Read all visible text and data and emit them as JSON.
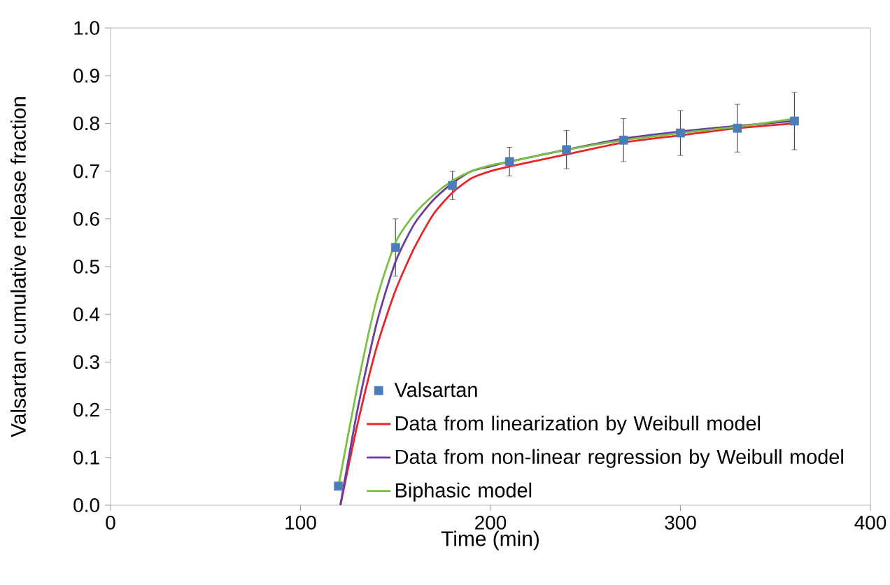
{
  "chart_data": {
    "type": "scatter",
    "xlabel": "Time (min)",
    "ylabel": "Valsartan cumulative release fraction",
    "xlim": [
      0,
      400
    ],
    "xticks": [
      0,
      100,
      200,
      300,
      400
    ],
    "ylim": [
      0,
      1
    ],
    "yticks": [
      {
        "value": 0,
        "label": "0.0"
      },
      0.1,
      0.2,
      0.3,
      0.4,
      0.5,
      0.6,
      0.7,
      0.8,
      0.9,
      {
        "value": 1,
        "label": "1.0"
      }
    ],
    "legend": "bottom",
    "grid": false,
    "series": [
      {
        "name": "Valsartan",
        "marker": "square",
        "color": "#4a7ebb",
        "x": [
          120,
          150,
          180,
          210,
          240,
          270,
          300,
          330,
          360
        ],
        "values": [
          0.04,
          0.54,
          0.67,
          0.72,
          0.745,
          0.765,
          0.78,
          0.79,
          0.805
        ],
        "errors": [
          null,
          0.06,
          0.03,
          0.03,
          0.04,
          0.045,
          0.047,
          0.05,
          0.06
        ]
      },
      {
        "name": "Data from linearization by Weibull model",
        "type": "line",
        "marker": "none",
        "color": "#e8262a",
        "x": [
          121,
          130,
          140,
          150,
          160,
          170,
          180,
          190,
          200,
          210,
          240,
          270,
          300,
          330,
          360
        ],
        "values": [
          0,
          0.17,
          0.33,
          0.45,
          0.54,
          0.61,
          0.655,
          0.685,
          0.7,
          0.71,
          0.735,
          0.76,
          0.775,
          0.79,
          0.8
        ]
      },
      {
        "name": "Data from non-linear regression by Weibull model",
        "type": "line",
        "marker": "none",
        "color": "#6a3d9a",
        "x": [
          121,
          130,
          140,
          150,
          160,
          170,
          180,
          190,
          200,
          210,
          240,
          270,
          300,
          330,
          360
        ],
        "values": [
          0,
          0.2,
          0.38,
          0.51,
          0.59,
          0.64,
          0.675,
          0.7,
          0.71,
          0.72,
          0.745,
          0.768,
          0.783,
          0.795,
          0.805
        ]
      },
      {
        "name": "Biphasic model",
        "type": "line",
        "marker": "none",
        "color": "#7ac143",
        "x": [
          120,
          130,
          140,
          150,
          160,
          170,
          180,
          190,
          200,
          210,
          240,
          270,
          300,
          330,
          360
        ],
        "values": [
          0.04,
          0.25,
          0.43,
          0.55,
          0.61,
          0.65,
          0.68,
          0.7,
          0.712,
          0.72,
          0.745,
          0.765,
          0.78,
          0.793,
          0.81
        ]
      }
    ]
  }
}
